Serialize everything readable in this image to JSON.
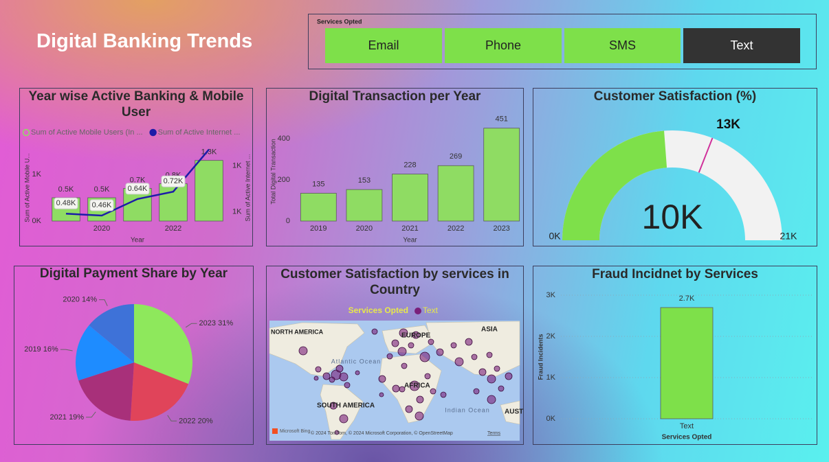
{
  "header": {
    "title": "Digital Banking Trends"
  },
  "slicer": {
    "title": "Services Opted",
    "options": [
      "Email",
      "Phone",
      "SMS",
      "Text"
    ],
    "selected": 3
  },
  "chart_data": [
    {
      "type": "combo",
      "title": "Year wise Active Banking & Mobile User",
      "categories": [
        null,
        "2020",
        null,
        "2022",
        null
      ],
      "x_label": "Year",
      "y_label": "Sum of Active Mobile U...",
      "y2_label": "Sum of Active Internet ...",
      "ylim": [
        0,
        1575
      ],
      "yticks": [
        {
          "value": 0,
          "label": "0K"
        },
        {
          "value": 1000,
          "label": "1K"
        }
      ],
      "y2lim": [
        400,
        1200
      ],
      "y2ticks": [
        {
          "value": 500,
          "label": "1K"
        },
        {
          "value": 1000,
          "label": "1K"
        }
      ],
      "series": [
        {
          "name": "Sum of Active Mobile Users (In ...",
          "type": "bar",
          "color": "#8fdc63",
          "values": [
            500,
            500,
            700,
            800,
            1300
          ],
          "value_labels": [
            "0.5K",
            "0.5K",
            "0.7K",
            "0.8K",
            "1.3K"
          ]
        },
        {
          "name": "Sum of Active Internet ...",
          "type": "line",
          "axis": "y2",
          "color": "#1c1ca8",
          "values": [
            480,
            460,
            640,
            720,
            1180
          ],
          "value_labels": [
            "0.48K",
            "0.46K",
            "0.64K",
            "0.72K",
            null
          ]
        }
      ]
    },
    {
      "type": "bar",
      "title": "Digital Transaction per Year",
      "categories": [
        "2019",
        "2020",
        "2021",
        "2022",
        "2023"
      ],
      "values": [
        135,
        153,
        228,
        269,
        451
      ],
      "color": "#8fdc63",
      "x_label": "Year",
      "y_label": "Total Digital Transaction",
      "ylim": [
        0,
        480
      ],
      "yticks": [
        0,
        200,
        400
      ]
    },
    {
      "type": "gauge",
      "title": "Customer Satisfaction (%)",
      "value": 10000,
      "value_label": "10K",
      "target": 13000,
      "target_label": "13K",
      "ylim": [
        0,
        21000
      ],
      "yticks": [
        {
          "value": 0,
          "label": "0K"
        },
        {
          "value": 21000,
          "label": "21K"
        }
      ],
      "color": "#7ee04a",
      "track_color": "#f2f2f2",
      "target_color": "#d0309a"
    },
    {
      "type": "pie",
      "title": "Digital Payment Share by Year",
      "categories": [
        "2023",
        "2022",
        "2021",
        "2019",
        "2020"
      ],
      "values": [
        31,
        20,
        19,
        16,
        14
      ],
      "value_labels": [
        "31%",
        "20%",
        "19%",
        "16%",
        "14%"
      ],
      "colors": [
        "#8ee85c",
        "#e0445a",
        "#a8307a",
        "#1e8cff",
        "#3e72d8"
      ]
    },
    {
      "type": "map",
      "title": "Customer Satisfaction by services in Country",
      "legend_title": "Services Opted",
      "series": [
        {
          "name": "Text",
          "color": "#7a1f7a"
        }
      ],
      "labels": [
        "NORTH AMERICA",
        "EUROPE",
        "ASIA",
        "Atlantic Ocean",
        "Indian Ocean",
        "SOUTH AMERICA",
        "AFRICA",
        "AUST"
      ],
      "provider": "Microsoft Bing",
      "attribution": "© 2024 TomTom, © 2024 Microsoft Corporation, © OpenStreetMap",
      "terms": "Terms"
    },
    {
      "type": "bar",
      "title": "Fraud Incidnet by Services",
      "categories": [
        "Text"
      ],
      "values": [
        2700
      ],
      "value_labels": [
        "2.7K"
      ],
      "color": "#7ee04a",
      "x_label": "Services Opted",
      "y_label": "Fraud Incidents",
      "ylim": [
        0,
        3000
      ],
      "yticks": [
        {
          "value": 0,
          "label": "0K"
        },
        {
          "value": 1000,
          "label": "1K"
        },
        {
          "value": 2000,
          "label": "2K"
        },
        {
          "value": 3000,
          "label": "3K"
        }
      ],
      "grid": true
    }
  ]
}
